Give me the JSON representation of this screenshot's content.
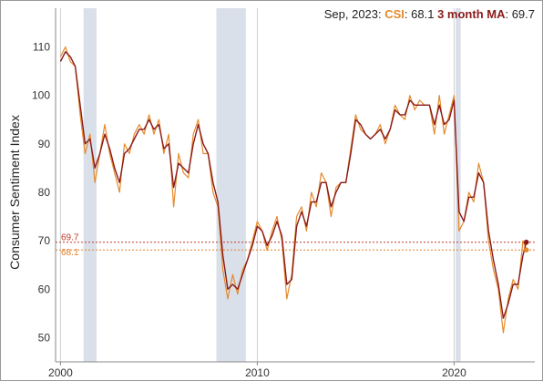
{
  "chart_data": {
    "type": "line",
    "ylabel": "Consumer Sentiment Index",
    "xlabel": "",
    "xlim": [
      1999.75,
      2024.1
    ],
    "ylim": [
      45,
      118
    ],
    "x_ticks": [
      2000,
      2010,
      2020
    ],
    "y_ticks": [
      50,
      60,
      70,
      80,
      90,
      100,
      110
    ],
    "recessions": [
      [
        2001.17,
        2001.83
      ],
      [
        2007.92,
        2009.42
      ],
      [
        2020.08,
        2020.33
      ]
    ],
    "annotation": {
      "date": "Sep, 2023:",
      "csi_label": "CSI",
      "csi_value": ": 68.1",
      "ma_label": "3 month MA",
      "ma_value": ": 69.7"
    },
    "reference_lines": [
      {
        "label": "69.7",
        "value": 69.7,
        "color": "#c0392b"
      },
      {
        "label": "68.1",
        "value": 68.1,
        "color": "#e67e22"
      }
    ],
    "series": [
      {
        "name": "CSI",
        "color": "#e58a2b",
        "points": [
          [
            2000.0,
            108
          ],
          [
            2000.25,
            110
          ],
          [
            2000.5,
            107
          ],
          [
            2000.75,
            106
          ],
          [
            2001.0,
            96
          ],
          [
            2001.25,
            88
          ],
          [
            2001.5,
            92
          ],
          [
            2001.75,
            82
          ],
          [
            2002.0,
            88
          ],
          [
            2002.25,
            94
          ],
          [
            2002.5,
            88
          ],
          [
            2002.75,
            84
          ],
          [
            2003.0,
            80
          ],
          [
            2003.25,
            90
          ],
          [
            2003.5,
            88
          ],
          [
            2003.75,
            92
          ],
          [
            2004.0,
            94
          ],
          [
            2004.25,
            92
          ],
          [
            2004.5,
            96
          ],
          [
            2004.75,
            92
          ],
          [
            2005.0,
            95
          ],
          [
            2005.25,
            88
          ],
          [
            2005.5,
            92
          ],
          [
            2005.75,
            77
          ],
          [
            2006.0,
            88
          ],
          [
            2006.25,
            84
          ],
          [
            2006.5,
            83
          ],
          [
            2006.75,
            92
          ],
          [
            2007.0,
            95
          ],
          [
            2007.25,
            88
          ],
          [
            2007.5,
            88
          ],
          [
            2007.75,
            80
          ],
          [
            2008.0,
            77
          ],
          [
            2008.25,
            64
          ],
          [
            2008.5,
            58
          ],
          [
            2008.75,
            63
          ],
          [
            2009.0,
            59
          ],
          [
            2009.25,
            64
          ],
          [
            2009.5,
            66
          ],
          [
            2009.75,
            70
          ],
          [
            2010.0,
            74
          ],
          [
            2010.25,
            72
          ],
          [
            2010.5,
            68
          ],
          [
            2010.75,
            72
          ],
          [
            2011.0,
            75
          ],
          [
            2011.25,
            70
          ],
          [
            2011.5,
            58
          ],
          [
            2011.75,
            63
          ],
          [
            2012.0,
            75
          ],
          [
            2012.25,
            77
          ],
          [
            2012.5,
            72
          ],
          [
            2012.75,
            80
          ],
          [
            2013.0,
            77
          ],
          [
            2013.25,
            84
          ],
          [
            2013.5,
            82
          ],
          [
            2013.75,
            75
          ],
          [
            2014.0,
            81
          ],
          [
            2014.25,
            82
          ],
          [
            2014.5,
            82
          ],
          [
            2014.75,
            89
          ],
          [
            2015.0,
            96
          ],
          [
            2015.25,
            93
          ],
          [
            2015.5,
            92
          ],
          [
            2015.75,
            91
          ],
          [
            2016.0,
            92
          ],
          [
            2016.25,
            94
          ],
          [
            2016.5,
            90
          ],
          [
            2016.75,
            93
          ],
          [
            2017.0,
            98
          ],
          [
            2017.25,
            96
          ],
          [
            2017.5,
            95
          ],
          [
            2017.75,
            100
          ],
          [
            2018.0,
            97
          ],
          [
            2018.25,
            99
          ],
          [
            2018.5,
            98
          ],
          [
            2018.75,
            98
          ],
          [
            2019.0,
            92
          ],
          [
            2019.25,
            100
          ],
          [
            2019.5,
            92
          ],
          [
            2019.75,
            96
          ],
          [
            2020.0,
            100
          ],
          [
            2020.25,
            72
          ],
          [
            2020.5,
            74
          ],
          [
            2020.75,
            80
          ],
          [
            2021.0,
            78
          ],
          [
            2021.25,
            86
          ],
          [
            2021.5,
            82
          ],
          [
            2021.75,
            70
          ],
          [
            2022.0,
            64
          ],
          [
            2022.25,
            60
          ],
          [
            2022.5,
            51
          ],
          [
            2022.75,
            58
          ],
          [
            2023.0,
            62
          ],
          [
            2023.25,
            60
          ],
          [
            2023.5,
            70
          ],
          [
            2023.67,
            68.1
          ]
        ]
      },
      {
        "name": "3 month MA",
        "color": "#8b1a1a",
        "points": [
          [
            2000.0,
            107
          ],
          [
            2000.25,
            109
          ],
          [
            2000.5,
            108
          ],
          [
            2000.75,
            106
          ],
          [
            2001.0,
            98
          ],
          [
            2001.25,
            90
          ],
          [
            2001.5,
            91
          ],
          [
            2001.75,
            85
          ],
          [
            2002.0,
            88
          ],
          [
            2002.25,
            92
          ],
          [
            2002.5,
            89
          ],
          [
            2002.75,
            85
          ],
          [
            2003.0,
            82
          ],
          [
            2003.25,
            88
          ],
          [
            2003.5,
            89
          ],
          [
            2003.75,
            91
          ],
          [
            2004.0,
            93
          ],
          [
            2004.25,
            93
          ],
          [
            2004.5,
            95
          ],
          [
            2004.75,
            93
          ],
          [
            2005.0,
            94
          ],
          [
            2005.25,
            89
          ],
          [
            2005.5,
            90
          ],
          [
            2005.75,
            81
          ],
          [
            2006.0,
            86
          ],
          [
            2006.25,
            85
          ],
          [
            2006.5,
            84
          ],
          [
            2006.75,
            90
          ],
          [
            2007.0,
            94
          ],
          [
            2007.25,
            90
          ],
          [
            2007.5,
            88
          ],
          [
            2007.75,
            82
          ],
          [
            2008.0,
            78
          ],
          [
            2008.25,
            67
          ],
          [
            2008.5,
            60
          ],
          [
            2008.75,
            61
          ],
          [
            2009.0,
            60
          ],
          [
            2009.25,
            63
          ],
          [
            2009.5,
            66
          ],
          [
            2009.75,
            69
          ],
          [
            2010.0,
            73
          ],
          [
            2010.25,
            72
          ],
          [
            2010.5,
            69
          ],
          [
            2010.75,
            71
          ],
          [
            2011.0,
            74
          ],
          [
            2011.25,
            71
          ],
          [
            2011.5,
            61
          ],
          [
            2011.75,
            62
          ],
          [
            2012.0,
            73
          ],
          [
            2012.25,
            76
          ],
          [
            2012.5,
            73
          ],
          [
            2012.75,
            78
          ],
          [
            2013.0,
            78
          ],
          [
            2013.25,
            82
          ],
          [
            2013.5,
            82
          ],
          [
            2013.75,
            77
          ],
          [
            2014.0,
            80
          ],
          [
            2014.25,
            82
          ],
          [
            2014.5,
            82
          ],
          [
            2014.75,
            88
          ],
          [
            2015.0,
            95
          ],
          [
            2015.25,
            94
          ],
          [
            2015.5,
            92
          ],
          [
            2015.75,
            91
          ],
          [
            2016.0,
            92
          ],
          [
            2016.25,
            93
          ],
          [
            2016.5,
            91
          ],
          [
            2016.75,
            93
          ],
          [
            2017.0,
            97
          ],
          [
            2017.25,
            96
          ],
          [
            2017.5,
            96
          ],
          [
            2017.75,
            99
          ],
          [
            2018.0,
            98
          ],
          [
            2018.25,
            98
          ],
          [
            2018.5,
            98
          ],
          [
            2018.75,
            98
          ],
          [
            2019.0,
            94
          ],
          [
            2019.25,
            98
          ],
          [
            2019.5,
            94
          ],
          [
            2019.75,
            95
          ],
          [
            2020.0,
            99
          ],
          [
            2020.25,
            76
          ],
          [
            2020.5,
            74
          ],
          [
            2020.75,
            79
          ],
          [
            2021.0,
            79
          ],
          [
            2021.25,
            84
          ],
          [
            2021.5,
            82
          ],
          [
            2021.75,
            72
          ],
          [
            2022.0,
            66
          ],
          [
            2022.25,
            61
          ],
          [
            2022.5,
            54
          ],
          [
            2022.75,
            57
          ],
          [
            2023.0,
            61
          ],
          [
            2023.25,
            61
          ],
          [
            2023.5,
            67
          ],
          [
            2023.67,
            69.7
          ]
        ]
      }
    ]
  }
}
